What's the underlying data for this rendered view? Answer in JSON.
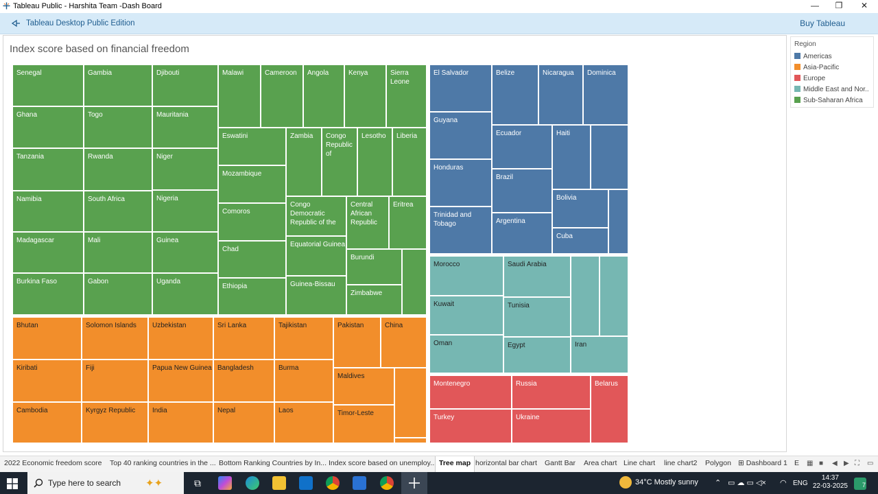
{
  "window": {
    "title": "Tableau Public - Harshita Team -Dash Board"
  },
  "toolbar": {
    "edition": "Tableau Desktop Public Edition",
    "buy": "Buy Tableau"
  },
  "sheet": {
    "title": "Index score based on financial  freedom"
  },
  "legend": {
    "title": "Region",
    "items": [
      {
        "label": "Americas",
        "color": "#4e79a7"
      },
      {
        "label": "Asia-Pacific",
        "color": "#f28e2b"
      },
      {
        "label": "Europe",
        "color": "#e15759"
      },
      {
        "label": "Middle East and Nor..",
        "color": "#76b7b2"
      },
      {
        "label": "Sub-Saharan Africa",
        "color": "#59a14f"
      }
    ]
  },
  "colors": {
    "Americas": "#4e79a7",
    "Asia-Pacific": "#f28e2b",
    "Europe": "#e15759",
    "Middle East and North Africa": "#76b7b2",
    "Sub-Saharan Africa": "#59a14f"
  },
  "tiles": {
    "sub_saharan_africa": [
      "Senegal",
      "Gambia",
      "Djibouti",
      "Malawi",
      "Cameroon",
      "Angola",
      "Kenya",
      "Sierra Leone",
      "Ghana",
      "Togo",
      "Mauritania",
      "Eswatini",
      "Zambia",
      "Congo Republic of",
      "Lesotho",
      "Liberia",
      "Tanzania",
      "Rwanda",
      "Niger",
      "Mozambique",
      "Namibia",
      "South Africa",
      "Nigeria",
      "Comoros",
      "Congo Democratic Republic of the",
      "Central African Republic",
      "Eritrea",
      "Madagascar",
      "Mali",
      "Guinea",
      "Chad",
      "Equatorial Guinea",
      "Burundi",
      "Burkina Faso",
      "Gabon",
      "Uganda",
      "Ethiopia",
      "Guinea-Bissau",
      "Zimbabwe",
      "",
      ""
    ],
    "americas": [
      "El Salvador",
      "Belize",
      "Nicaragua",
      "Dominica",
      "Guyana",
      "Ecuador",
      "Haiti",
      "",
      "Honduras",
      "Brazil",
      "Bolivia",
      "",
      "Trinidad and Tobago",
      "Argentina",
      "Cuba"
    ],
    "asia_pacific": [
      "Bhutan",
      "Solomon Islands",
      "Uzbekistan",
      "Sri Lanka",
      "Tajikistan",
      "Pakistan",
      "China",
      "Kiribati",
      "Fiji",
      "Papua New Guinea",
      "Bangladesh",
      "Burma",
      "Maldives",
      "",
      "Cambodia",
      "Kyrgyz Republic",
      "India",
      "Nepal",
      "Laos",
      "Timor-Leste",
      ""
    ],
    "middle_east": [
      "Morocco",
      "Saudi Arabia",
      "",
      "",
      "Kuwait",
      "Tunisia",
      "Oman",
      "Egypt",
      "Iran"
    ],
    "europe": [
      "Montenegro",
      "Russia",
      "Belarus",
      "Turkey",
      "Ukraine"
    ]
  },
  "tabs": [
    "2022 Economic  freedom score",
    "Top 40 ranking  countries in the ...",
    "Bottom Ranking  Countries by In...",
    "Index score based on unemploy...",
    "Tree map",
    "horizontal bar chart",
    "Gantt Bar",
    "Area chart",
    "Line chart",
    "line chart2",
    "Polygon",
    "Dashboard 1",
    "E"
  ],
  "taskbar": {
    "search_placeholder": "Type here to search",
    "weather": "34°C  Mostly sunny",
    "lang": "ENG",
    "time": "14:37",
    "date": "22-03-2025",
    "badge": "7"
  }
}
